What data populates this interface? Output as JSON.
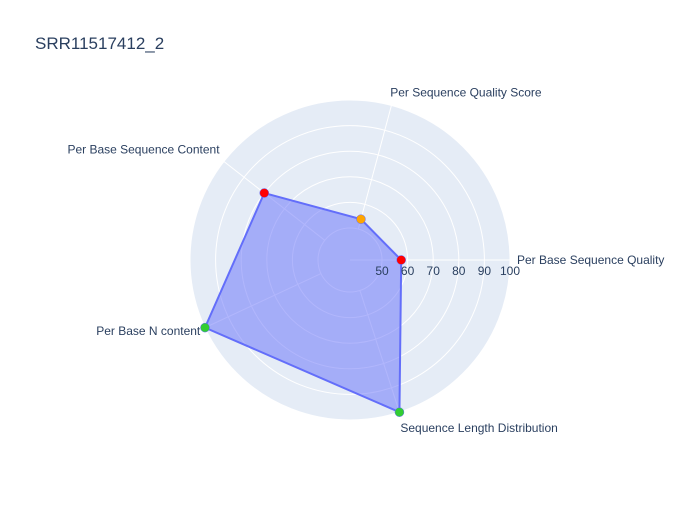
{
  "chart_data": {
    "type": "radar",
    "title": "SRR11517412_2",
    "radial_range": [
      50,
      100
    ],
    "radial_ticks": [
      "50",
      "60",
      "70",
      "80",
      "90",
      "100"
    ],
    "categories": [
      "Per Base Sequence Quality",
      "Per Sequence Quality Score",
      "Per Base Sequence Content",
      "Per Base N content",
      "Sequence Length Distribution"
    ],
    "series": [
      {
        "values": [
          57.5,
          54,
          80,
          100,
          100
        ],
        "marker_colors": [
          "#ff0000",
          "#ffa500",
          "#ff0000",
          "#32cd32",
          "#32cd32"
        ]
      }
    ],
    "colors": {
      "background": "#e5ecf6",
      "grid": "#ffffff",
      "fill": "rgba(99,110,250,0.5)",
      "line": "#636efa",
      "text": "#2a3f5f"
    },
    "grid": true,
    "legend": false
  }
}
